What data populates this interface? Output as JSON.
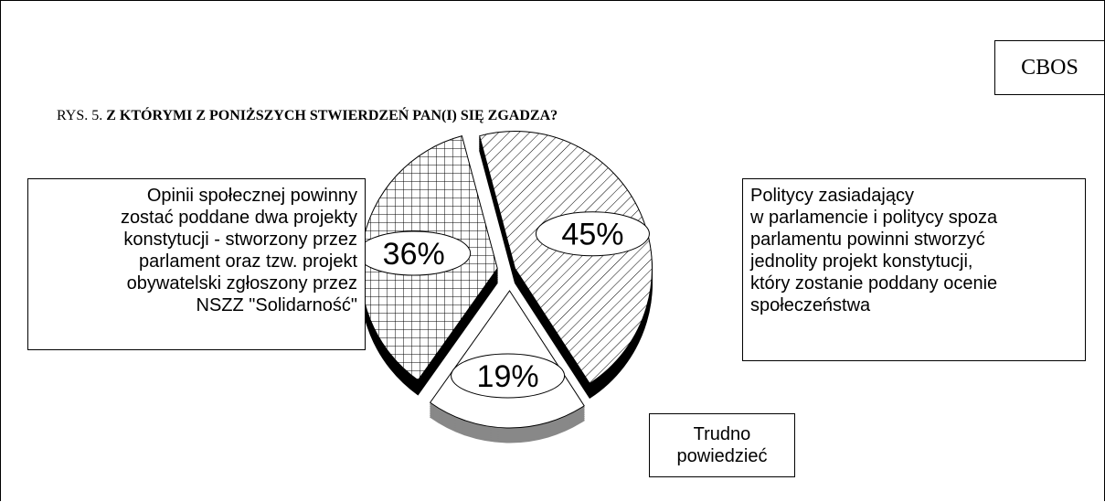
{
  "source": "CBOS",
  "chart_data": {
    "type": "pie",
    "figure_label": "RYS. 5.",
    "title": "Z KTÓRYMI Z PONIŻSZYCH STWIERDZEŃ PAN(I) SIĘ ZGADZA?",
    "categories": [
      "Politycy zasiadający\nw parlamencie i politycy spoza\nparlamentu powinni stworzyć\njednolity projekt konstytucji,\nktóry zostanie poddany ocenie\nspołeczeństwa",
      "Trudno\npowiedzieć",
      "Opinii społecznej powinny\nzostać poddane dwa projekty\nkonstytucji - stworzony przez\nparlament oraz tzw.  projekt\nobywatelski zgłoszony przez\nNSZZ \"Solidarność\""
    ],
    "values": [
      45,
      19,
      36
    ],
    "value_labels": [
      "45%",
      "19%",
      "36%"
    ]
  }
}
